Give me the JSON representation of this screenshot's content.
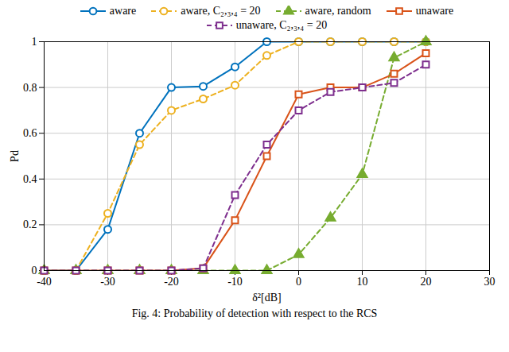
{
  "chart_data": {
    "type": "line",
    "xlabel": "δ²[dB]",
    "ylabel": "Pd",
    "caption": "Fig. 4: Probability of detection with respect to the RCS",
    "xlim": [
      -40,
      30
    ],
    "xticks": [
      -40,
      -30,
      -20,
      -10,
      0,
      10,
      20,
      30
    ],
    "ylim": [
      0,
      1
    ],
    "yticks": [
      0,
      0.2,
      0.4,
      0.6,
      0.8,
      1
    ],
    "grid": true,
    "legend": "top",
    "x": [
      -40,
      -35,
      -30,
      -25,
      -20,
      -15,
      -10,
      -5,
      0,
      5,
      10,
      15,
      20
    ],
    "series": [
      {
        "name": "aware",
        "color": "#0072BD",
        "marker": "circle",
        "line_style": "solid",
        "values": [
          0,
          0,
          0.18,
          0.6,
          0.8,
          0.805,
          0.89,
          1,
          1,
          1,
          1,
          1,
          1
        ]
      },
      {
        "name": "aware, C₂,₃,₄ = 20",
        "color": "#EDB120",
        "marker": "circle",
        "line_style": "dashed",
        "values": [
          0,
          0,
          0.25,
          0.55,
          0.7,
          0.75,
          0.81,
          0.94,
          1,
          1,
          1,
          1,
          1
        ]
      },
      {
        "name": "aware, random",
        "color": "#77AC30",
        "marker": "triangle",
        "line_style": "dashed",
        "values": [
          0,
          0,
          0,
          0,
          0,
          0,
          0,
          0,
          0.07,
          0.23,
          0.42,
          0.93,
          1
        ]
      },
      {
        "name": "unaware",
        "color": "#D95319",
        "marker": "square",
        "line_style": "solid",
        "values": [
          0,
          0,
          0,
          0,
          0,
          0.01,
          0.22,
          0.5,
          0.77,
          0.8,
          0.8,
          0.86,
          0.95
        ]
      },
      {
        "name": "unaware, C₂,₃,₄ = 20",
        "color": "#7E2F8E",
        "marker": "square",
        "line_style": "dashed",
        "values": [
          0,
          0,
          0,
          0,
          0,
          0.01,
          0.33,
          0.55,
          0.7,
          0.78,
          0.8,
          0.82,
          0.9
        ]
      }
    ]
  }
}
